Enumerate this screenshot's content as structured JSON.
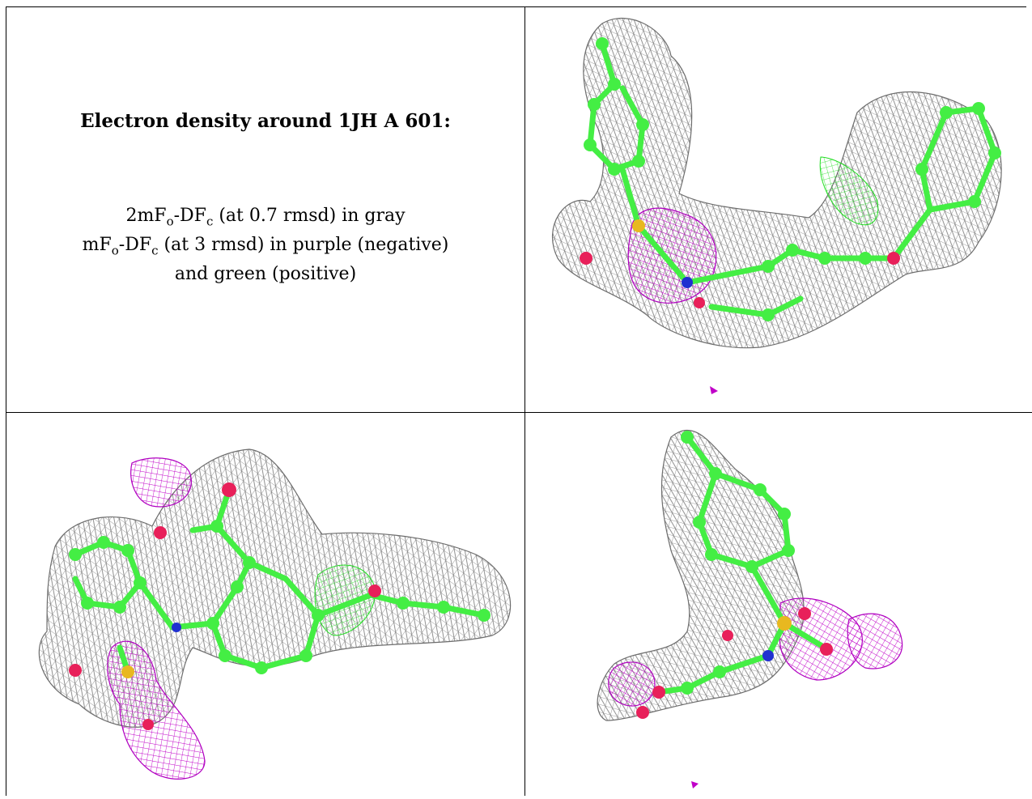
{
  "caption": {
    "title": "Electron density around 1JH A 601:",
    "line1": {
      "prefix": "2mF",
      "sub1": "o",
      "mid": "-DF",
      "sub2": "c",
      "suffix": " (at 0.7 rmsd) in gray"
    },
    "line2": {
      "prefix": "mF",
      "sub1": "o",
      "mid": "-DF",
      "sub2": "c",
      "suffix": " (at 3 rmsd) in purple (negative)"
    },
    "line3": "and green (positive)"
  },
  "colors": {
    "mesh_2fofc": "#8a8a8a",
    "mesh_negative": "#c000c8",
    "mesh_positive": "#22dd22",
    "carbon": "#44ee44",
    "oxygen": "#e8205a",
    "nitrogen": "#2030d0",
    "sulfur": "#e8b820"
  },
  "panels": [
    {
      "name": "panel-view-top-right"
    },
    {
      "name": "panel-view-bottom-left"
    },
    {
      "name": "panel-view-bottom-right"
    }
  ]
}
